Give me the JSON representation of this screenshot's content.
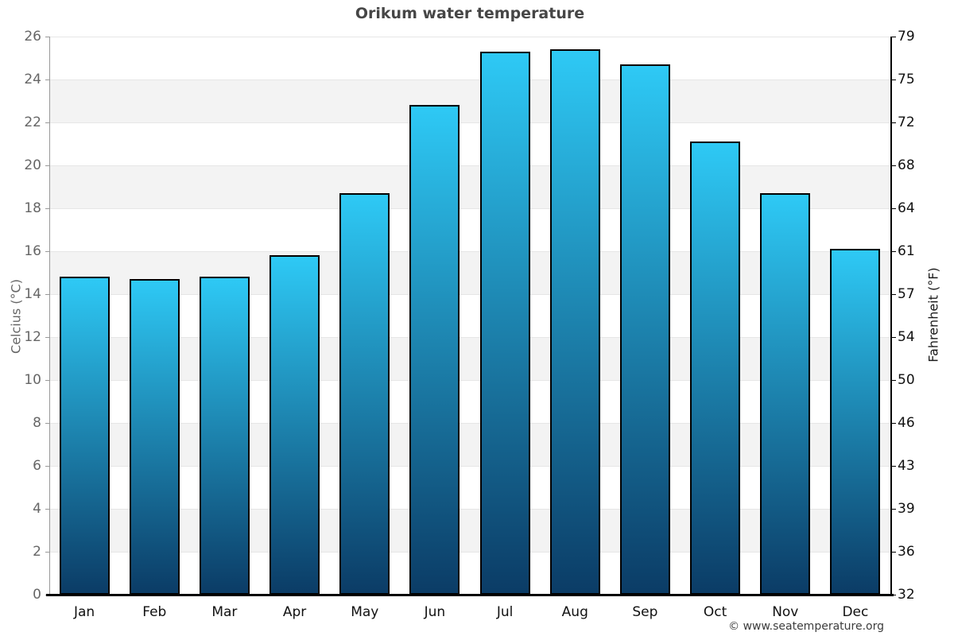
{
  "title": "Orikum water temperature",
  "copyright": "© www.seatemperature.org",
  "chart_data": {
    "type": "bar",
    "title": "Orikum water temperature",
    "categories": [
      "Jan",
      "Feb",
      "Mar",
      "Apr",
      "May",
      "Jun",
      "Jul",
      "Aug",
      "Sep",
      "Oct",
      "Nov",
      "Dec"
    ],
    "values": [
      14.8,
      14.7,
      14.8,
      15.8,
      18.7,
      22.8,
      25.3,
      25.4,
      24.7,
      21.1,
      18.7,
      16.1
    ],
    "values_unit": "°C",
    "xlabel": "",
    "ylabel": "Celcius (°C)",
    "ylabel_left": "Celcius (°C)",
    "ylabel_right": "Fahrenheit (°F)",
    "ylim": [
      0,
      26
    ],
    "yticks_celsius": [
      0,
      2,
      4,
      6,
      8,
      10,
      12,
      14,
      16,
      18,
      20,
      22,
      24,
      26
    ],
    "yticks_fahrenheit": [
      32,
      36,
      39,
      43,
      46,
      50,
      54,
      57,
      61,
      64,
      68,
      72,
      75,
      79
    ],
    "grid": "alternating horizontal bands every 2 degrees C",
    "legend": "none"
  },
  "colors": {
    "bar_gradient_top": "#2ec9f5",
    "bar_gradient_bottom": "#0b3c66",
    "bar_border": "#000000",
    "band_gray": "#f3f3f3",
    "band_white": "#ffffff",
    "gridline": "#e6e6e6",
    "axis_left_line": "#999999",
    "axis_right_line": "#000000",
    "axis_bottom_line": "#000000",
    "tick_label_left": "#666666",
    "tick_label_right": "#111111",
    "month_label": "#111111",
    "title": "#464646",
    "copyright": "#3d3d3d"
  }
}
